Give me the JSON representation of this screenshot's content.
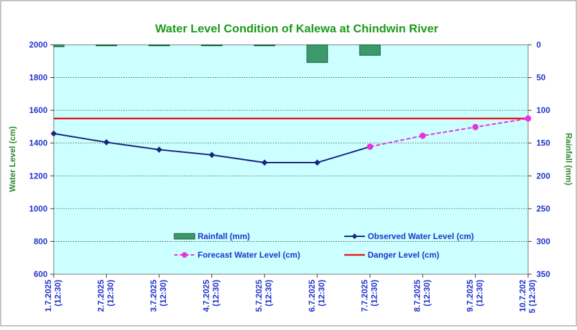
{
  "chart_data": {
    "type": "bar+line",
    "title": "Water Level Condition of Kalewa at Chindwin River",
    "ylabel_left": "Water Level (cm)",
    "ylabel_right": "Rainfall (mm)",
    "ylim_left": [
      600,
      2000
    ],
    "yticks_left": [
      "600",
      "800",
      "1000",
      "1200",
      "1400",
      "1600",
      "1800",
      "2000"
    ],
    "ylim_right_inverted": [
      0,
      350
    ],
    "yticks_right": [
      "0",
      "50",
      "100",
      "150",
      "200",
      "250",
      "300",
      "350"
    ],
    "categories": [
      [
        "1.7.2025",
        "(12:30)"
      ],
      [
        "2.7.2025",
        "(12:30)"
      ],
      [
        "3.7.2025",
        "(12:30)"
      ],
      [
        "4.7.2025",
        "(12:30)"
      ],
      [
        "5.7.2025",
        "(12:30)"
      ],
      [
        "6.7.2025",
        "(12:30)"
      ],
      [
        "7.7.2025",
        "(12:30)"
      ],
      [
        "8.7.2025",
        "(12:30)"
      ],
      [
        "9.7.2025",
        "(12:30)"
      ],
      [
        "10.7.202",
        "5 (12:30)"
      ]
    ],
    "series": [
      {
        "name": "Rainfall (mm)",
        "type": "bar",
        "axis": "right",
        "color": "#3a9a6a",
        "values": [
          3,
          1,
          0.5,
          1,
          1,
          27,
          16,
          null,
          null,
          null
        ]
      },
      {
        "name": "Observed Water Level (cm)",
        "type": "line",
        "axis": "left",
        "color": "#1a237e",
        "values": [
          1458,
          1405,
          1360,
          1328,
          1281,
          1281,
          1378,
          null,
          null,
          null
        ]
      },
      {
        "name": "Forecast Water Level (cm)",
        "type": "line-dashed",
        "axis": "left",
        "color": "#e832e0",
        "values": [
          null,
          null,
          null,
          null,
          null,
          null,
          1378,
          1445,
          1498,
          1550
        ]
      },
      {
        "name": "Danger Level (cm)",
        "type": "hline",
        "axis": "left",
        "color": "#e51c1c",
        "value": 1550
      }
    ],
    "legend_placement": "inside-bottom",
    "grid": "horizontal-dotted"
  }
}
